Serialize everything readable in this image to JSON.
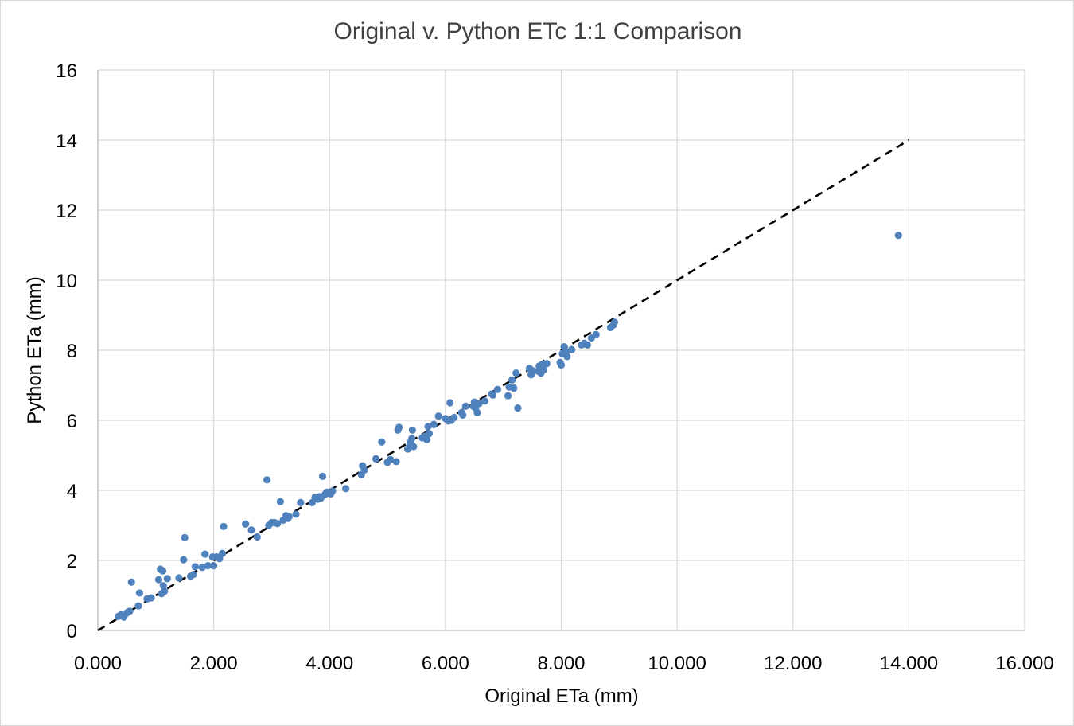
{
  "chart_data": {
    "type": "scatter",
    "title": "Original v. Python ETc 1:1 Comparison",
    "xlabel": "Original ETa (mm)",
    "ylabel": "Python ETa (mm)",
    "xlim": [
      0,
      16
    ],
    "ylim": [
      0,
      16
    ],
    "x_ticks": [
      0,
      2,
      4,
      6,
      8,
      10,
      12,
      14,
      16
    ],
    "x_tick_labels": [
      "0.000",
      "2.000",
      "4.000",
      "6.000",
      "8.000",
      "10.000",
      "12.000",
      "14.000",
      "16.000"
    ],
    "y_ticks": [
      0,
      2,
      4,
      6,
      8,
      10,
      12,
      14,
      16
    ],
    "y_tick_labels": [
      "0",
      "2",
      "4",
      "6",
      "8",
      "10",
      "12",
      "14",
      "16"
    ],
    "grid": true,
    "marker_color": "#4f81bd",
    "reference_line": {
      "style": "dashed",
      "color": "#000000",
      "x": [
        0,
        14
      ],
      "y": [
        0,
        14
      ]
    },
    "points": [
      [
        0.35,
        0.4
      ],
      [
        0.4,
        0.45
      ],
      [
        0.45,
        0.38
      ],
      [
        0.5,
        0.5
      ],
      [
        0.55,
        0.55
      ],
      [
        0.58,
        1.38
      ],
      [
        0.7,
        0.7
      ],
      [
        0.72,
        1.07
      ],
      [
        0.85,
        0.9
      ],
      [
        0.92,
        0.93
      ],
      [
        1.05,
        1.45
      ],
      [
        1.08,
        1.75
      ],
      [
        1.1,
        1.05
      ],
      [
        1.12,
        1.7
      ],
      [
        1.13,
        1.28
      ],
      [
        1.15,
        1.12
      ],
      [
        1.2,
        1.48
      ],
      [
        1.4,
        1.5
      ],
      [
        1.48,
        2.02
      ],
      [
        1.5,
        2.65
      ],
      [
        1.6,
        1.55
      ],
      [
        1.65,
        1.6
      ],
      [
        1.68,
        1.82
      ],
      [
        1.8,
        1.8
      ],
      [
        1.85,
        2.18
      ],
      [
        1.9,
        1.85
      ],
      [
        1.98,
        2.1
      ],
      [
        2.0,
        1.85
      ],
      [
        2.05,
        2.1
      ],
      [
        2.1,
        2.05
      ],
      [
        2.15,
        2.2
      ],
      [
        2.17,
        2.97
      ],
      [
        2.55,
        3.04
      ],
      [
        2.65,
        2.87
      ],
      [
        2.75,
        2.67
      ],
      [
        2.92,
        4.3
      ],
      [
        2.95,
        3.0
      ],
      [
        3.0,
        3.08
      ],
      [
        3.05,
        3.08
      ],
      [
        3.1,
        3.05
      ],
      [
        3.15,
        3.68
      ],
      [
        3.2,
        3.15
      ],
      [
        3.25,
        3.28
      ],
      [
        3.28,
        3.2
      ],
      [
        3.3,
        3.25
      ],
      [
        3.42,
        3.32
      ],
      [
        3.5,
        3.65
      ],
      [
        3.7,
        3.65
      ],
      [
        3.75,
        3.8
      ],
      [
        3.8,
        3.75
      ],
      [
        3.82,
        3.82
      ],
      [
        3.85,
        3.78
      ],
      [
        3.88,
        4.4
      ],
      [
        3.92,
        3.88
      ],
      [
        3.95,
        3.95
      ],
      [
        4.0,
        3.95
      ],
      [
        4.02,
        3.9
      ],
      [
        4.05,
        3.98
      ],
      [
        4.28,
        4.05
      ],
      [
        4.55,
        4.45
      ],
      [
        4.57,
        4.7
      ],
      [
        4.6,
        4.58
      ],
      [
        4.8,
        4.9
      ],
      [
        4.9,
        5.38
      ],
      [
        5.0,
        4.8
      ],
      [
        5.05,
        4.88
      ],
      [
        5.15,
        4.82
      ],
      [
        5.18,
        5.72
      ],
      [
        5.2,
        5.8
      ],
      [
        5.35,
        5.18
      ],
      [
        5.38,
        5.25
      ],
      [
        5.4,
        5.38
      ],
      [
        5.42,
        5.48
      ],
      [
        5.43,
        5.72
      ],
      [
        5.45,
        5.25
      ],
      [
        5.6,
        5.5
      ],
      [
        5.65,
        5.55
      ],
      [
        5.68,
        5.45
      ],
      [
        5.7,
        5.82
      ],
      [
        5.72,
        5.62
      ],
      [
        5.8,
        5.88
      ],
      [
        5.88,
        6.12
      ],
      [
        6.0,
        6.05
      ],
      [
        6.05,
        5.98
      ],
      [
        6.08,
        6.5
      ],
      [
        6.1,
        6.0
      ],
      [
        6.15,
        6.08
      ],
      [
        6.28,
        6.22
      ],
      [
        6.3,
        6.15
      ],
      [
        6.35,
        6.4
      ],
      [
        6.48,
        6.4
      ],
      [
        6.5,
        6.52
      ],
      [
        6.52,
        6.35
      ],
      [
        6.55,
        6.22
      ],
      [
        6.58,
        6.48
      ],
      [
        6.68,
        6.55
      ],
      [
        6.8,
        6.75
      ],
      [
        6.82,
        6.72
      ],
      [
        6.9,
        6.88
      ],
      [
        7.08,
        6.7
      ],
      [
        7.1,
        6.95
      ],
      [
        7.15,
        7.15
      ],
      [
        7.18,
        6.92
      ],
      [
        7.22,
        7.35
      ],
      [
        7.25,
        6.35
      ],
      [
        7.45,
        7.48
      ],
      [
        7.48,
        7.3
      ],
      [
        7.5,
        7.42
      ],
      [
        7.6,
        7.4
      ],
      [
        7.62,
        7.55
      ],
      [
        7.65,
        7.35
      ],
      [
        7.67,
        7.6
      ],
      [
        7.7,
        7.45
      ],
      [
        7.75,
        7.62
      ],
      [
        7.98,
        7.65
      ],
      [
        8.0,
        7.58
      ],
      [
        8.02,
        7.9
      ],
      [
        8.05,
        8.1
      ],
      [
        8.08,
        7.95
      ],
      [
        8.1,
        7.82
      ],
      [
        8.18,
        8.02
      ],
      [
        8.35,
        8.15
      ],
      [
        8.4,
        8.2
      ],
      [
        8.45,
        8.15
      ],
      [
        8.52,
        8.35
      ],
      [
        8.6,
        8.45
      ],
      [
        8.85,
        8.65
      ],
      [
        8.9,
        8.72
      ],
      [
        8.92,
        8.8
      ],
      [
        13.82,
        11.28
      ]
    ]
  }
}
